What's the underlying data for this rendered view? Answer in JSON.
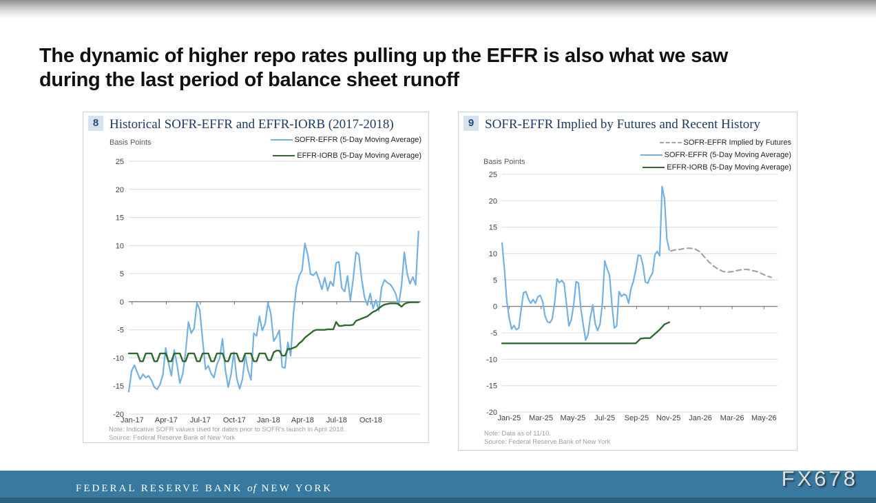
{
  "heading": {
    "line1": "The dynamic of higher repo rates pulling up the EFFR is also what we saw",
    "line2": "during the last period of balance sheet runoff"
  },
  "footer": {
    "bank_left": "FEDERAL RESERVE BANK",
    "bank_of": "of",
    "bank_right": "NEW YORK",
    "watermark": "FX678"
  },
  "colors": {
    "footer_bar": "#38799f",
    "footer_stripe": "#2a5f80",
    "badge_bg": "#d7e2ee",
    "badge_text": "#1f4e79",
    "panel_title": "#1c3c64",
    "series_blue": "#72b1e1",
    "series_green": "#2e6a2e",
    "series_gray_dashed": "#a3a3a3"
  },
  "chart_data": [
    {
      "type": "line",
      "badge": "8",
      "title": "Historical SOFR-EFFR and EFFR-IORB (2017-2018)",
      "y_axis_label": "Basis Points",
      "note": "Note: Indicative SOFR values used for dates prior to SOFR's launch in April 2018.",
      "source": "Source: Federal Reserve Bank of New York",
      "ylim": [
        -20,
        25
      ],
      "yticks": [
        25,
        20,
        15,
        10,
        5,
        0,
        -5,
        -10,
        -15,
        -20
      ],
      "xlim": [
        0,
        25.7
      ],
      "x_unit": "months",
      "grid_color": "#dadada",
      "axis_color": "#6e6e6e",
      "xticks": [
        {
          "label": "Jan-17",
          "x": 0.3
        },
        {
          "label": "Apr-17",
          "x": 3.3
        },
        {
          "label": "Jul-17",
          "x": 6.3
        },
        {
          "label": "Oct-17",
          "x": 9.3
        },
        {
          "label": "Jan-18",
          "x": 12.3
        },
        {
          "label": "Apr-18",
          "x": 15.3
        },
        {
          "label": "Jul-18",
          "x": 18.3
        },
        {
          "label": "Oct-18",
          "x": 21.3
        }
      ],
      "legend": [
        {
          "label": "SOFR-EFFR (5-Day Moving Average)",
          "color": "#72b1e1",
          "dash": null
        },
        {
          "label": "EFFR-IORB (5-Day Moving Average)",
          "color": "#2e6a2e",
          "dash": null
        }
      ],
      "series": [
        {
          "id": "sofr-effr",
          "name": "SOFR-EFFR (5-Day Moving Average)",
          "color": "#72b1e1",
          "width": 2.2,
          "dash": null,
          "x_start": 0,
          "x_step": 0.25,
          "values": [
            -16.0,
            -12.3,
            -11.3,
            -12.6,
            -13.8,
            -12.9,
            -13.5,
            -13.2,
            -14.0,
            -15.2,
            -15.6,
            -14.7,
            -13.0,
            -8.2,
            -10.9,
            -13.2,
            -8.6,
            -11.2,
            -14.5,
            -12.8,
            -9.0,
            -3.6,
            -5.6,
            -4.7,
            -0.2,
            -1.5,
            -6.8,
            -12.0,
            -11.4,
            -12.8,
            -13.5,
            -11.2,
            -10.0,
            -6.6,
            -12.1,
            -15.2,
            -12.9,
            -9.0,
            -13.6,
            -15.5,
            -13.8,
            -9.5,
            -12.2,
            -13.9,
            -5.6,
            -6.1,
            -2.6,
            -5.1,
            -3.9,
            -0.2,
            -2.1,
            -7.0,
            -6.2,
            -5.1,
            -11.6,
            -11.8,
            -7.2,
            -9.6,
            -2.0,
            2.6,
            4.6,
            5.6,
            10.4,
            8.4,
            4.9,
            4.7,
            5.3,
            3.9,
            2.2,
            4.3,
            2.0,
            3.6,
            2.8,
            6.9,
            7.1,
            2.4,
            1.8,
            4.6,
            0.2,
            4.0,
            8.8,
            8.4,
            4.0,
            0.8,
            -0.6,
            1.5,
            -1.2,
            0.3,
            -1.6,
            2.5,
            3.9,
            3.4,
            3.1,
            2.4,
            1.4,
            -0.6,
            2.8,
            8.8,
            5.0,
            3.2,
            4.4,
            3.0,
            12.5
          ]
        },
        {
          "id": "effr-iorb",
          "name": "EFFR-IORB (5-Day Moving Average)",
          "color": "#2e6a2e",
          "width": 2.4,
          "dash": null,
          "x_start": 0,
          "x_step": 0.25,
          "values": [
            -9.2,
            -9.2,
            -9.2,
            -9.2,
            -10.6,
            -10.6,
            -9.2,
            -9.2,
            -9.2,
            -10.6,
            -10.6,
            -9.2,
            -9.2,
            -9.2,
            -10.6,
            -10.6,
            -9.2,
            -9.2,
            -9.2,
            -10.6,
            -10.6,
            -9.2,
            -9.2,
            -9.2,
            -10.6,
            -10.6,
            -9.2,
            -9.2,
            -9.2,
            -10.6,
            -10.6,
            -9.2,
            -9.2,
            -9.2,
            -10.6,
            -10.6,
            -9.2,
            -9.2,
            -9.2,
            -10.6,
            -10.6,
            -9.2,
            -9.2,
            -9.2,
            -10.6,
            -10.6,
            -9.2,
            -9.2,
            -9.2,
            -10.4,
            -10.4,
            -9.0,
            -8.7,
            -8.7,
            -9.6,
            -9.6,
            -8.4,
            -8.4,
            -8.2,
            -8.0,
            -7.4,
            -7.0,
            -6.4,
            -6.0,
            -5.6,
            -5.2,
            -5.0,
            -5.0,
            -5.0,
            -5.0,
            -4.9,
            -4.9,
            -4.9,
            -3.6,
            -4.3,
            -4.3,
            -4.2,
            -4.2,
            -4.2,
            -4.1,
            -3.4,
            -3.2,
            -3.0,
            -2.8,
            -2.6,
            -2.2,
            -1.8,
            -1.6,
            -1.2,
            -0.8,
            -0.5,
            -0.4,
            -0.3,
            -0.3,
            -0.3,
            -0.4,
            -0.9,
            -0.4,
            -0.2,
            -0.1,
            -0.1,
            -0.1,
            -0.1
          ]
        }
      ]
    },
    {
      "type": "line",
      "badge": "9",
      "title": "SOFR-EFFR Implied by Futures and Recent History",
      "y_axis_label": "Basis Points",
      "note": "Note: Data as of 11/10.",
      "source": "Source: Federal Reserve Bank of New York",
      "ylim": [
        -20,
        25
      ],
      "yticks": [
        25,
        20,
        15,
        10,
        5,
        0,
        -5,
        -10,
        -15,
        -20
      ],
      "xlim": [
        0,
        17.3
      ],
      "x_unit": "months",
      "grid_color": "#dadada",
      "axis_color": "#6e6e6e",
      "xticks": [
        {
          "label": "Jan-25",
          "x": 0.45
        },
        {
          "label": "Mar-25",
          "x": 2.45
        },
        {
          "label": "May-25",
          "x": 4.45
        },
        {
          "label": "Jul-25",
          "x": 6.45
        },
        {
          "label": "Sep-25",
          "x": 8.45
        },
        {
          "label": "Nov-25",
          "x": 10.45
        },
        {
          "label": "Jan-26",
          "x": 12.45
        },
        {
          "label": "Mar-26",
          "x": 14.45
        },
        {
          "label": "May-26",
          "x": 16.45
        }
      ],
      "legend": [
        {
          "label": "SOFR-EFFR Implied by Futures",
          "color": "#a3a3a3",
          "dash": "7,5"
        },
        {
          "label": "SOFR-EFFR (5-Day Moving Average)",
          "color": "#72b1e1",
          "dash": null
        },
        {
          "label": "EFFR-IORB (5-Day Moving Average)",
          "color": "#2e6a2e",
          "dash": null
        }
      ],
      "series": [
        {
          "id": "sofr-effr-implied-futures",
          "name": "SOFR-EFFR Implied by Futures",
          "color": "#a3a3a3",
          "width": 2.2,
          "dash": "7,5",
          "x_start": 10.6,
          "x_step": 0.3,
          "values": [
            10.5,
            10.7,
            10.8,
            11.0,
            11.0,
            10.9,
            10.4,
            9.4,
            8.4,
            7.6,
            7.0,
            6.6,
            6.5,
            6.6,
            6.8,
            7.0,
            7.0,
            6.8,
            6.6,
            6.2,
            5.8,
            5.5
          ]
        },
        {
          "id": "sofr-effr",
          "name": "SOFR-EFFR (5-Day Moving Average)",
          "color": "#72b1e1",
          "width": 2.2,
          "dash": null,
          "x_start": 0,
          "x_step": 0.15,
          "values": [
            12.0,
            7.0,
            1.0,
            -2.2,
            -4.3,
            -3.6,
            -4.4,
            -4.1,
            -0.6,
            2.6,
            2.8,
            1.4,
            0.6,
            1.3,
            0.6,
            1.8,
            2.1,
            0.9,
            -1.8,
            -2.9,
            -3.1,
            -2.4,
            0.6,
            5.2,
            4.5,
            4.9,
            4.3,
            0.4,
            -3.7,
            -2.5,
            0.3,
            4.7,
            4.4,
            -0.5,
            -3.5,
            -6.4,
            -5.3,
            -2.0,
            0.3,
            -3.3,
            -4.6,
            -3.4,
            0.6,
            8.6,
            7.1,
            5.9,
            0.4,
            -4.1,
            -3.7,
            2.8,
            1.9,
            2.3,
            2.1,
            0.6,
            3.4,
            4.8,
            6.9,
            9.7,
            9.6,
            7.8,
            4.6,
            4.4,
            5.5,
            6.3,
            9.8,
            10.4,
            9.6,
            22.7,
            20.5,
            12.8,
            10.7
          ]
        },
        {
          "id": "effr-iorb",
          "name": "EFFR-IORB (5-Day Moving Average)",
          "color": "#2e6a2e",
          "width": 2.4,
          "dash": null,
          "x_start": 0,
          "x_step": 0.3,
          "values": [
            -7.0,
            -7.0,
            -7.0,
            -7.0,
            -7.0,
            -7.0,
            -7.0,
            -7.0,
            -7.0,
            -7.0,
            -7.0,
            -7.0,
            -7.0,
            -7.0,
            -7.0,
            -7.0,
            -7.0,
            -7.0,
            -7.0,
            -7.0,
            -7.0,
            -7.0,
            -7.0,
            -7.0,
            -7.0,
            -7.0,
            -7.0,
            -7.0,
            -7.0,
            -6.1,
            -6.0,
            -6.0,
            -5.2,
            -4.4,
            -3.4,
            -3.0
          ]
        }
      ]
    }
  ]
}
